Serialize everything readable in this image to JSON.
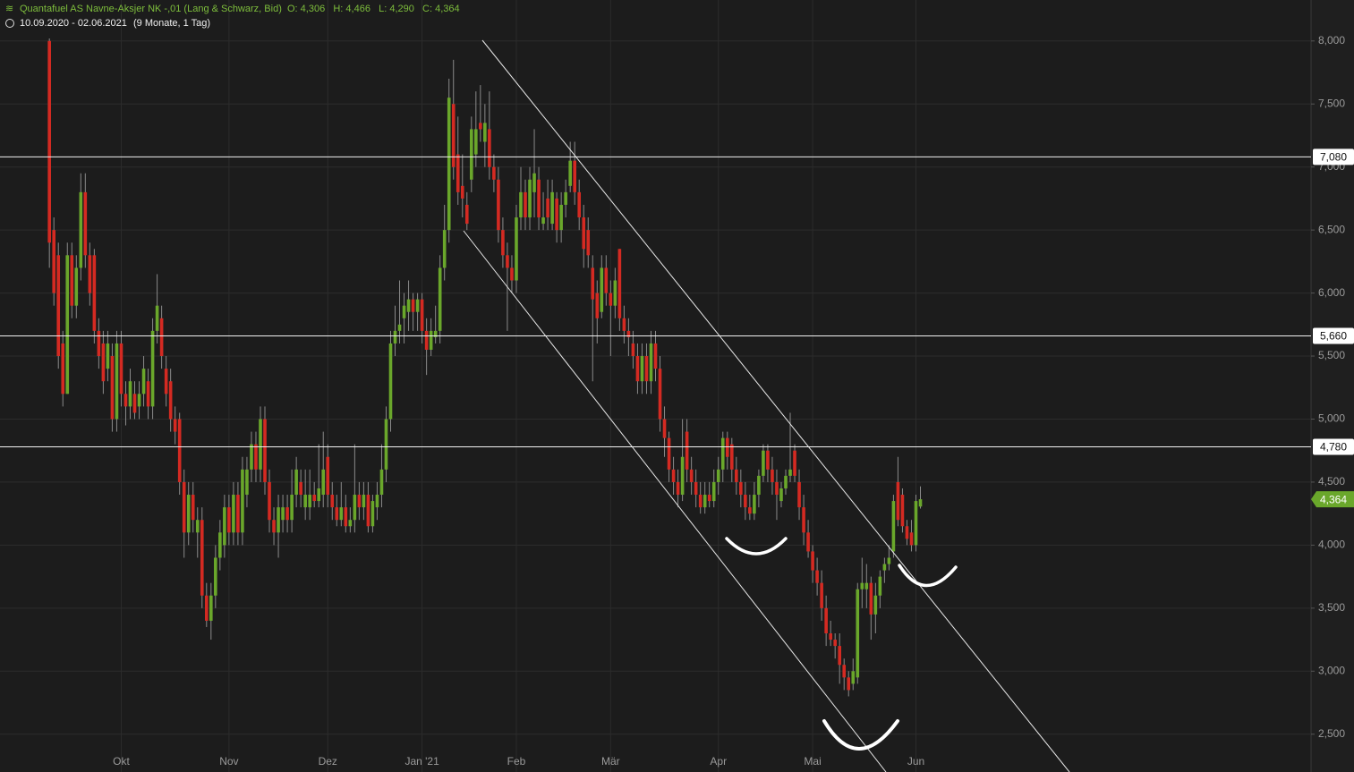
{
  "header": {
    "title": "Quantafuel AS Navne-Aksjer NK -,01 (Lang & Schwarz, Bid)",
    "quote": "O: 4,306   H: 4,466   L: 4,290   C: 4,364",
    "range": "10.09.2020 - 02.06.2021",
    "period": "(9 Monate, 1 Tag)"
  },
  "chart_data": {
    "type": "candlestick",
    "up_color": "#6aa72b",
    "down_color": "#d42a22",
    "grid": true,
    "xlim": [
      -11,
      281
    ],
    "ylim": [
      2.2,
      8.325
    ],
    "xticks": [
      {
        "value": 16,
        "label": "Okt"
      },
      {
        "value": 40,
        "label": "Nov"
      },
      {
        "value": 62,
        "label": "Dez"
      },
      {
        "value": 83,
        "label": "Jan '21"
      },
      {
        "value": 104,
        "label": "Feb"
      },
      {
        "value": 125,
        "label": "Mär"
      },
      {
        "value": 149,
        "label": "Apr"
      },
      {
        "value": 170,
        "label": "Mai"
      },
      {
        "value": 193,
        "label": "Jun"
      }
    ],
    "yticks": [
      {
        "value": 2.5,
        "label": "2,500"
      },
      {
        "value": 3,
        "label": "3,000"
      },
      {
        "value": 3.5,
        "label": "3,500"
      },
      {
        "value": 4,
        "label": "4,000"
      },
      {
        "value": 4.5,
        "label": "4,500"
      },
      {
        "value": 5,
        "label": "5,000"
      },
      {
        "value": 5.5,
        "label": "5,500"
      },
      {
        "value": 6,
        "label": "6,000"
      },
      {
        "value": 6.5,
        "label": "6,500"
      },
      {
        "value": 7,
        "label": "7,000"
      },
      {
        "value": 7.5,
        "label": "7,500"
      },
      {
        "value": 8,
        "label": "8,000"
      }
    ],
    "levels": [
      {
        "value": 7.08,
        "label": "7,080"
      },
      {
        "value": 5.66,
        "label": "5,660"
      },
      {
        "value": 4.78,
        "label": "4,780"
      }
    ],
    "last_price": {
      "value": 4.364,
      "label": "4,364"
    },
    "ohlc": [
      [
        8.0,
        8.02,
        6.2,
        6.4
      ],
      [
        6.5,
        6.6,
        5.9,
        6.0
      ],
      [
        6.3,
        6.4,
        5.4,
        5.5
      ],
      [
        5.6,
        5.7,
        5.1,
        5.2
      ],
      [
        5.2,
        6.4,
        5.2,
        6.3
      ],
      [
        6.3,
        6.4,
        5.8,
        5.9
      ],
      [
        5.9,
        6.3,
        5.8,
        6.2
      ],
      [
        6.2,
        6.95,
        6.1,
        6.8
      ],
      [
        6.8,
        6.95,
        6.2,
        6.3
      ],
      [
        6.3,
        6.4,
        5.9,
        6.0
      ],
      [
        6.3,
        6.35,
        5.6,
        5.7
      ],
      [
        5.7,
        5.8,
        5.4,
        5.5
      ],
      [
        5.6,
        5.7,
        5.2,
        5.3
      ],
      [
        5.4,
        5.7,
        5.3,
        5.6
      ],
      [
        5.5,
        5.6,
        4.9,
        5.0
      ],
      [
        5.0,
        5.7,
        4.9,
        5.6
      ],
      [
        5.6,
        5.7,
        5.1,
        5.2
      ],
      [
        5.2,
        5.3,
        4.95,
        5.1
      ],
      [
        5.1,
        5.4,
        5.0,
        5.3
      ],
      [
        5.2,
        5.3,
        5.0,
        5.05
      ],
      [
        5.1,
        5.3,
        5.0,
        5.2
      ],
      [
        5.2,
        5.5,
        5.1,
        5.4
      ],
      [
        5.3,
        5.4,
        5.0,
        5.1
      ],
      [
        5.1,
        5.8,
        5.0,
        5.7
      ],
      [
        5.7,
        6.15,
        5.6,
        5.9
      ],
      [
        5.8,
        5.9,
        5.4,
        5.5
      ],
      [
        5.4,
        5.5,
        5.1,
        5.2
      ],
      [
        5.3,
        5.4,
        4.9,
        5.0
      ],
      [
        5.0,
        5.1,
        4.8,
        4.9
      ],
      [
        5.0,
        5.05,
        4.4,
        4.5
      ],
      [
        4.5,
        4.6,
        3.9,
        4.1
      ],
      [
        4.1,
        4.5,
        4.0,
        4.4
      ],
      [
        4.4,
        4.5,
        4.1,
        4.2
      ],
      [
        4.1,
        4.3,
        3.9,
        4.2
      ],
      [
        4.2,
        4.3,
        3.5,
        3.6
      ],
      [
        3.6,
        3.7,
        3.35,
        3.4
      ],
      [
        3.4,
        3.7,
        3.25,
        3.6
      ],
      [
        3.6,
        4.0,
        3.5,
        3.9
      ],
      [
        3.9,
        4.2,
        3.8,
        4.1
      ],
      [
        4.0,
        4.4,
        3.9,
        4.3
      ],
      [
        4.3,
        4.4,
        4.0,
        4.1
      ],
      [
        4.1,
        4.5,
        4.0,
        4.4
      ],
      [
        4.4,
        4.5,
        4.0,
        4.1
      ],
      [
        4.1,
        4.7,
        4.0,
        4.6
      ],
      [
        4.4,
        4.7,
        4.3,
        4.6
      ],
      [
        4.6,
        4.9,
        4.5,
        4.8
      ],
      [
        4.8,
        4.9,
        4.5,
        4.6
      ],
      [
        4.6,
        5.1,
        4.5,
        5.0
      ],
      [
        5.0,
        5.1,
        4.4,
        4.5
      ],
      [
        4.5,
        4.6,
        4.1,
        4.2
      ],
      [
        4.2,
        4.3,
        4.0,
        4.1
      ],
      [
        4.1,
        4.4,
        3.9,
        4.3
      ],
      [
        4.2,
        4.4,
        4.1,
        4.3
      ],
      [
        4.3,
        4.4,
        4.1,
        4.2
      ],
      [
        4.2,
        4.6,
        4.1,
        4.4
      ],
      [
        4.4,
        4.7,
        4.3,
        4.6
      ],
      [
        4.5,
        4.6,
        4.3,
        4.4
      ],
      [
        4.3,
        4.6,
        4.2,
        4.4
      ],
      [
        4.3,
        4.6,
        4.2,
        4.4
      ],
      [
        4.4,
        4.5,
        4.3,
        4.35
      ],
      [
        4.35,
        4.8,
        4.3,
        4.45
      ],
      [
        4.4,
        4.9,
        4.3,
        4.6
      ],
      [
        4.7,
        4.8,
        4.3,
        4.4
      ],
      [
        4.4,
        4.5,
        4.2,
        4.3
      ],
      [
        4.3,
        4.4,
        4.15,
        4.2
      ],
      [
        4.2,
        4.5,
        4.15,
        4.3
      ],
      [
        4.3,
        4.4,
        4.1,
        4.15
      ],
      [
        4.15,
        4.3,
        4.1,
        4.2
      ],
      [
        4.2,
        4.8,
        4.1,
        4.4
      ],
      [
        4.4,
        4.5,
        4.2,
        4.3
      ],
      [
        4.3,
        4.5,
        4.2,
        4.4
      ],
      [
        4.4,
        4.5,
        4.1,
        4.15
      ],
      [
        4.15,
        4.4,
        4.1,
        4.35
      ],
      [
        4.3,
        4.5,
        4.2,
        4.4
      ],
      [
        4.4,
        4.8,
        4.3,
        4.6
      ],
      [
        4.6,
        5.1,
        4.5,
        5.0
      ],
      [
        5.0,
        5.7,
        4.9,
        5.6
      ],
      [
        5.6,
        5.9,
        5.5,
        5.7
      ],
      [
        5.7,
        6.1,
        5.6,
        5.75
      ],
      [
        5.8,
        6.0,
        5.6,
        5.9
      ],
      [
        5.85,
        6.1,
        5.7,
        5.95
      ],
      [
        5.95,
        6.0,
        5.7,
        5.85
      ],
      [
        5.85,
        6.0,
        5.7,
        5.95
      ],
      [
        5.95,
        6.0,
        5.6,
        5.7
      ],
      [
        5.7,
        5.8,
        5.35,
        5.55
      ],
      [
        5.55,
        5.8,
        5.5,
        5.7
      ],
      [
        5.65,
        5.9,
        5.6,
        5.7
      ],
      [
        5.7,
        6.3,
        5.6,
        6.2
      ],
      [
        6.2,
        6.7,
        6.1,
        6.5
      ],
      [
        6.5,
        7.7,
        6.4,
        7.55
      ],
      [
        7.5,
        7.85,
        6.9,
        7.0
      ],
      [
        7.1,
        7.4,
        6.7,
        6.8
      ],
      [
        6.85,
        7.1,
        6.6,
        6.75
      ],
      [
        6.7,
        6.8,
        6.5,
        6.55
      ],
      [
        6.9,
        7.4,
        6.8,
        7.3
      ],
      [
        7.1,
        7.6,
        7.0,
        7.3
      ],
      [
        7.35,
        7.65,
        7.2,
        7.3
      ],
      [
        7.2,
        7.5,
        7.0,
        7.35
      ],
      [
        7.3,
        7.6,
        6.9,
        7.0
      ],
      [
        7.0,
        7.1,
        6.8,
        6.9
      ],
      [
        6.9,
        7.0,
        6.4,
        6.5
      ],
      [
        6.5,
        6.6,
        6.2,
        6.3
      ],
      [
        6.3,
        6.4,
        5.7,
        6.2
      ],
      [
        6.2,
        6.3,
        6.0,
        6.1
      ],
      [
        6.1,
        6.7,
        6.0,
        6.6
      ],
      [
        6.6,
        7.0,
        6.5,
        6.8
      ],
      [
        6.8,
        6.9,
        6.5,
        6.6
      ],
      [
        6.6,
        7.0,
        6.5,
        6.9
      ],
      [
        6.8,
        7.3,
        6.6,
        6.95
      ],
      [
        6.9,
        7.0,
        6.5,
        6.6
      ],
      [
        6.55,
        6.8,
        6.5,
        6.6
      ],
      [
        6.75,
        6.9,
        6.5,
        6.6
      ],
      [
        6.55,
        6.9,
        6.5,
        6.8
      ],
      [
        6.75,
        6.8,
        6.4,
        6.5
      ],
      [
        6.5,
        6.8,
        6.4,
        6.7
      ],
      [
        6.7,
        6.9,
        6.6,
        6.8
      ],
      [
        6.85,
        7.2,
        6.8,
        7.05
      ],
      [
        7.05,
        7.2,
        6.7,
        6.8
      ],
      [
        6.8,
        6.9,
        6.5,
        6.6
      ],
      [
        6.6,
        6.7,
        6.2,
        6.35
      ],
      [
        6.5,
        6.6,
        6.2,
        6.3
      ],
      [
        6.2,
        6.3,
        5.3,
        5.95
      ],
      [
        6.0,
        6.1,
        5.6,
        5.8
      ],
      [
        5.85,
        6.3,
        5.8,
        6.2
      ],
      [
        6.2,
        6.3,
        5.9,
        6.0
      ],
      [
        6.0,
        6.1,
        5.5,
        5.9
      ],
      [
        5.9,
        6.2,
        5.8,
        6.1
      ],
      [
        6.35,
        6.35,
        5.7,
        5.8
      ],
      [
        5.8,
        5.9,
        5.6,
        5.7
      ],
      [
        5.7,
        5.8,
        5.5,
        5.65
      ],
      [
        5.6,
        5.7,
        5.4,
        5.5
      ],
      [
        5.5,
        5.6,
        5.2,
        5.3
      ],
      [
        5.3,
        5.6,
        5.2,
        5.5
      ],
      [
        5.5,
        5.6,
        5.2,
        5.3
      ],
      [
        5.3,
        5.7,
        5.2,
        5.6
      ],
      [
        5.6,
        5.7,
        5.3,
        5.4
      ],
      [
        5.4,
        5.5,
        4.9,
        5.0
      ],
      [
        5.0,
        5.1,
        4.7,
        4.85
      ],
      [
        4.85,
        4.9,
        4.5,
        4.6
      ],
      [
        4.6,
        4.7,
        4.4,
        4.5
      ],
      [
        4.5,
        4.6,
        4.3,
        4.4
      ],
      [
        4.4,
        5.0,
        4.35,
        4.7
      ],
      [
        4.9,
        5.0,
        4.5,
        4.6
      ],
      [
        4.6,
        4.7,
        4.4,
        4.5
      ],
      [
        4.5,
        4.6,
        4.3,
        4.4
      ],
      [
        4.4,
        4.5,
        4.25,
        4.3
      ],
      [
        4.3,
        4.5,
        4.25,
        4.4
      ],
      [
        4.4,
        4.5,
        4.3,
        4.35
      ],
      [
        4.35,
        4.6,
        4.3,
        4.5
      ],
      [
        4.5,
        4.7,
        4.4,
        4.6
      ],
      [
        4.6,
        4.9,
        4.5,
        4.85
      ],
      [
        4.85,
        4.9,
        4.6,
        4.7
      ],
      [
        4.8,
        4.85,
        4.5,
        4.6
      ],
      [
        4.6,
        4.7,
        4.4,
        4.5
      ],
      [
        4.5,
        4.6,
        4.3,
        4.4
      ],
      [
        4.4,
        4.5,
        4.2,
        4.3
      ],
      [
        4.3,
        4.4,
        4.2,
        4.25
      ],
      [
        4.25,
        4.5,
        4.2,
        4.4
      ],
      [
        4.4,
        4.6,
        4.3,
        4.55
      ],
      [
        4.55,
        4.8,
        4.5,
        4.75
      ],
      [
        4.75,
        4.8,
        4.5,
        4.6
      ],
      [
        4.6,
        4.7,
        4.4,
        4.5
      ],
      [
        4.5,
        4.6,
        4.2,
        4.4
      ],
      [
        4.35,
        4.5,
        4.3,
        4.45
      ],
      [
        4.45,
        4.6,
        4.4,
        4.55
      ],
      [
        4.55,
        5.05,
        4.5,
        4.6
      ],
      [
        4.75,
        4.8,
        4.5,
        4.55
      ],
      [
        4.5,
        4.6,
        4.2,
        4.3
      ],
      [
        4.3,
        4.4,
        4.0,
        4.1
      ],
      [
        4.1,
        4.2,
        3.9,
        3.95
      ],
      [
        3.95,
        4.0,
        3.7,
        3.8
      ],
      [
        3.8,
        3.9,
        3.6,
        3.7
      ],
      [
        3.7,
        3.8,
        3.4,
        3.5
      ],
      [
        3.5,
        3.6,
        3.2,
        3.3
      ],
      [
        3.3,
        3.4,
        3.2,
        3.25
      ],
      [
        3.25,
        3.3,
        3.1,
        3.2
      ],
      [
        3.2,
        3.3,
        2.9,
        3.05
      ],
      [
        3.05,
        3.1,
        2.85,
        2.95
      ],
      [
        2.95,
        3.0,
        2.8,
        2.85
      ],
      [
        2.9,
        3.1,
        2.85,
        3.0
      ],
      [
        2.95,
        3.7,
        2.9,
        3.65
      ],
      [
        3.65,
        3.9,
        3.5,
        3.7
      ],
      [
        3.65,
        3.85,
        3.5,
        3.7
      ],
      [
        3.7,
        3.75,
        3.25,
        3.45
      ],
      [
        3.45,
        3.7,
        3.3,
        3.6
      ],
      [
        3.6,
        3.8,
        3.5,
        3.75
      ],
      [
        3.8,
        3.9,
        3.7,
        3.85
      ],
      [
        3.85,
        4.0,
        3.8,
        3.9
      ],
      [
        3.95,
        4.4,
        3.9,
        4.35
      ],
      [
        4.5,
        4.7,
        4.15,
        4.2
      ],
      [
        4.4,
        4.45,
        4.1,
        4.15
      ],
      [
        4.15,
        4.2,
        4.0,
        4.05
      ],
      [
        4.1,
        4.2,
        3.95,
        4.0
      ],
      [
        4.0,
        4.4,
        3.95,
        4.35
      ],
      [
        4.306,
        4.466,
        4.29,
        4.364
      ]
    ]
  }
}
